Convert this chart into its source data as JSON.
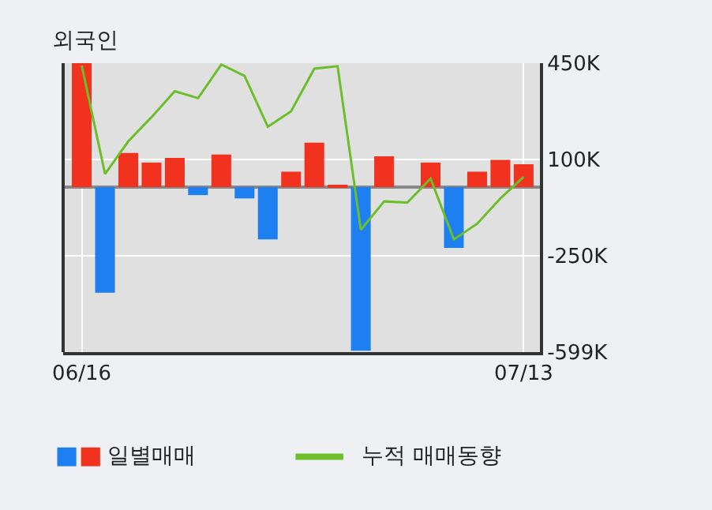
{
  "chart_data": {
    "type": "bar",
    "title": "외국인",
    "categories": [
      "06/16",
      null,
      null,
      null,
      null,
      null,
      null,
      null,
      null,
      null,
      null,
      null,
      null,
      null,
      null,
      null,
      null,
      null,
      null,
      "07/13"
    ],
    "series": [
      {
        "name": "일별매매",
        "values": [
          450,
          -383,
          124,
          89,
          106,
          -29,
          118,
          -41,
          -190,
          56,
          161,
          6,
          -594,
          112,
          0,
          89,
          -221,
          56,
          99,
          83
        ],
        "colors": [
          "#f0321e",
          "#1e7ff0",
          "#f0321e",
          "#f0321e",
          "#f0321e",
          "#1e7ff0",
          "#f0321e",
          "#1e7ff0",
          "#1e7ff0",
          "#f0321e",
          "#f0321e",
          "#f0321e",
          "#1e7ff0",
          "#f0321e",
          "#f0321e",
          "#f0321e",
          "#1e7ff0",
          "#f0321e",
          "#f0321e",
          "#f0321e"
        ]
      },
      {
        "type": "line",
        "name": "누적 매매동향",
        "color": "#6cbf2a",
        "values": [
          441,
          48,
          166,
          254,
          348,
          323,
          445,
          404,
          219,
          275,
          430,
          439,
          -155,
          -52,
          -56,
          31,
          -190,
          -133,
          -41,
          37
        ]
      }
    ],
    "ylim": [
      -599,
      450
    ],
    "yticks": [
      {
        "value": 450,
        "label": "450K"
      },
      {
        "value": 100,
        "label": "100K"
      },
      {
        "value": -250,
        "label": "-250K"
      },
      {
        "value": -599,
        "label": "-599K"
      }
    ],
    "grid": true,
    "legend": "bottom"
  }
}
